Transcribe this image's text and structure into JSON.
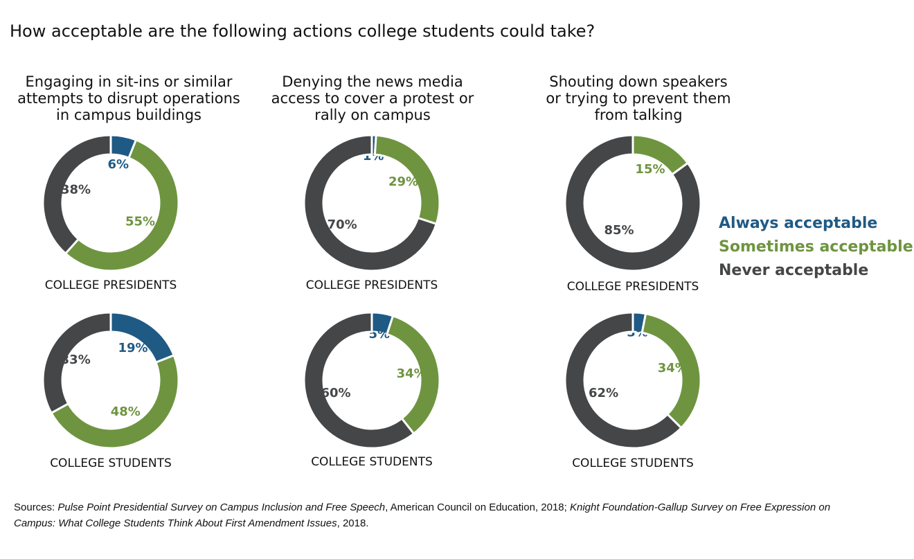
{
  "title": "How acceptable are the following actions college students could take?",
  "colors": {
    "always": "#1f5a85",
    "sometimes": "#6e9440",
    "never": "#444648"
  },
  "legend": {
    "always": "Always acceptable",
    "sometimes": "Sometimes acceptable",
    "never": "Never acceptable"
  },
  "columns": [
    {
      "heading": [
        "Engaging in sit-ins or similar",
        "attempts to disrupt operations",
        "in campus buildings"
      ]
    },
    {
      "heading": [
        "Denying the news media",
        "access to cover a protest or",
        "rally on campus"
      ]
    },
    {
      "heading": [
        "Shouting down speakers",
        "or trying to prevent them",
        "from talking"
      ]
    }
  ],
  "chart_data": [
    {
      "type": "pie",
      "column": 0,
      "group": "COLLEGE PRESIDENTS",
      "slices": [
        {
          "name": "Always acceptable",
          "value": 6,
          "label": "6%"
        },
        {
          "name": "Sometimes acceptable",
          "value": 55,
          "label": "55%"
        },
        {
          "name": "Never acceptable",
          "value": 38,
          "label": "38%"
        }
      ]
    },
    {
      "type": "pie",
      "column": 0,
      "group": "COLLEGE STUDENTS",
      "slices": [
        {
          "name": "Always acceptable",
          "value": 19,
          "label": "19%"
        },
        {
          "name": "Sometimes acceptable",
          "value": 48,
          "label": "48%"
        },
        {
          "name": "Never acceptable",
          "value": 33,
          "label": "33%"
        }
      ]
    },
    {
      "type": "pie",
      "column": 1,
      "group": "COLLEGE PRESIDENTS",
      "slices": [
        {
          "name": "Always acceptable",
          "value": 1,
          "label": "1%"
        },
        {
          "name": "Sometimes acceptable",
          "value": 29,
          "label": "29%"
        },
        {
          "name": "Never acceptable",
          "value": 70,
          "label": "70%"
        }
      ]
    },
    {
      "type": "pie",
      "column": 1,
      "group": "COLLEGE STUDENTS",
      "slices": [
        {
          "name": "Always acceptable",
          "value": 5,
          "label": "5%"
        },
        {
          "name": "Sometimes acceptable",
          "value": 34,
          "label": "34%"
        },
        {
          "name": "Never acceptable",
          "value": 60,
          "label": "60%"
        }
      ]
    },
    {
      "type": "pie",
      "column": 2,
      "group": "COLLEGE PRESIDENTS",
      "slices": [
        {
          "name": "Always acceptable",
          "value": 0,
          "label": ""
        },
        {
          "name": "Sometimes acceptable",
          "value": 15,
          "label": "15%"
        },
        {
          "name": "Never acceptable",
          "value": 85,
          "label": "85%"
        }
      ]
    },
    {
      "type": "pie",
      "column": 2,
      "group": "COLLEGE STUDENTS",
      "slices": [
        {
          "name": "Always acceptable",
          "value": 3,
          "label": "3%"
        },
        {
          "name": "Sometimes acceptable",
          "value": 34,
          "label": "34%"
        },
        {
          "name": "Never acceptable",
          "value": 62,
          "label": "62%"
        }
      ]
    }
  ],
  "sources": {
    "prefix": "Sources: ",
    "title1": "Pulse Point Presidential Survey on Campus Inclusion and Free Speech",
    "mid": ", American Council on Education, 2018; ",
    "title2": "Knight Foundation-Gallup Survey on Free Expression on Campus: What College Students Think About First Amendment Issues",
    "suffix": ", 2018."
  }
}
